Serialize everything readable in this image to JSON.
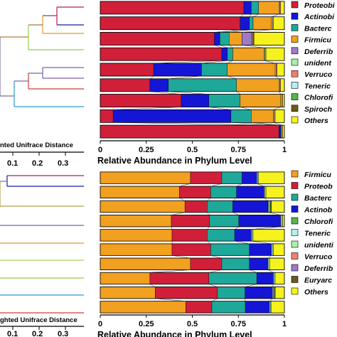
{
  "colors": {
    "Proteobacteria": "#d11f3a",
    "Actinobacteria": "#1515d6",
    "Bacteroidetes": "#1ea89a",
    "Firmicutes": "#f2a01f",
    "Deferribacteres": "#9f7ac9",
    "unidentified": "#a8f0a8",
    "Verrucomicrobia": "#f08070",
    "Tenericutes": "#b5f0f0",
    "Chloroflexi": "#58b24a",
    "Spirochaetes": "#6b5a1a",
    "Euryarchaeota": "#6b5a1a",
    "Others": "#f5f21e"
  },
  "chart_data": [
    {
      "type": "bar",
      "orientation": "horizontal-stacked",
      "xlabel": "Relative Abundance in Phylum Level",
      "xticks": [
        "0",
        "0.25",
        "0.5",
        "0.75",
        "1"
      ],
      "xlim": [
        0,
        1
      ],
      "legend": [
        "Proteobi",
        "Actinobi",
        "Bacterc",
        "Firmicu",
        "Deferrib",
        "unident",
        "Verruco",
        "Teneric",
        "Chlorofi",
        "Spiroch",
        "Others"
      ],
      "phyla": [
        "Proteobacteria",
        "Actinobacteria",
        "Bacteroidetes",
        "Firmicutes",
        "Deferribacteres",
        "unidentified",
        "Verrucomicrobia",
        "Tenericutes",
        "Chloroflexi",
        "Spirochaetes",
        "Others"
      ],
      "rows": [
        [
          0.78,
          0.04,
          0.04,
          0.11,
          0.0,
          0.005,
          0.005,
          0.0,
          0.0,
          0.0,
          0.02
        ],
        [
          0.76,
          0.05,
          0.02,
          0.1,
          0.0,
          0.005,
          0.005,
          0.0,
          0.0,
          0.0,
          0.06
        ],
        [
          0.62,
          0.03,
          0.05,
          0.07,
          0.05,
          0.005,
          0.005,
          0.0,
          0.0,
          0.005,
          0.165
        ],
        [
          0.66,
          0.03,
          0.03,
          0.17,
          0.0,
          0.005,
          0.005,
          0.0,
          0.0,
          0.0,
          0.1
        ],
        [
          0.29,
          0.26,
          0.14,
          0.26,
          0.0,
          0.005,
          0.005,
          0.0,
          0.0,
          0.0,
          0.04
        ],
        [
          0.27,
          0.1,
          0.37,
          0.23,
          0.0,
          0.005,
          0.005,
          0.0,
          0.0,
          0.0,
          0.02
        ],
        [
          0.44,
          0.15,
          0.17,
          0.22,
          0.0,
          0.005,
          0.005,
          0.0,
          0.0,
          0.0,
          0.01
        ],
        [
          0.07,
          0.64,
          0.11,
          0.12,
          0.0,
          0.005,
          0.005,
          0.0,
          0.0,
          0.0,
          0.05
        ],
        [
          0.97,
          0.01,
          0.005,
          0.005,
          0.0,
          0.0,
          0.0,
          0.0,
          0.0,
          0.0,
          0.01
        ]
      ]
    },
    {
      "type": "bar",
      "orientation": "horizontal-stacked",
      "xlabel": "Relative Abundance in Phylum Level",
      "xticks": [
        "0",
        "0.25",
        "0.5",
        "0.75",
        "1"
      ],
      "xlim": [
        0,
        1
      ],
      "legend": [
        "Firmicu",
        "Proteob",
        "Bacterc",
        "Actinob",
        "Chlorofi",
        "Teneric",
        "unidenti",
        "Verruco",
        "Deferrib",
        "Euryarc",
        "Others"
      ],
      "phyla": [
        "Firmicutes",
        "Proteobacteria",
        "Bacteroidetes",
        "Actinobacteria",
        "Chloroflexi",
        "Tenericutes",
        "unidentified",
        "Verrucomicrobia",
        "Deferribacteres",
        "Euryarchaeota",
        "Others"
      ],
      "rows": [
        [
          0.49,
          0.17,
          0.11,
          0.08,
          0.0,
          0.005,
          0.005,
          0.0,
          0.0,
          0.0,
          0.14
        ],
        [
          0.43,
          0.17,
          0.14,
          0.15,
          0.0,
          0.005,
          0.005,
          0.0,
          0.0,
          0.0,
          0.1
        ],
        [
          0.46,
          0.12,
          0.14,
          0.19,
          0.005,
          0.005,
          0.005,
          0.0,
          0.0,
          0.005,
          0.07
        ],
        [
          0.39,
          0.21,
          0.16,
          0.23,
          0.0,
          0.005,
          0.005,
          0.0,
          0.0,
          0.0,
          0.01
        ],
        [
          0.39,
          0.19,
          0.15,
          0.09,
          0.0,
          0.005,
          0.005,
          0.0,
          0.0,
          0.0,
          0.17
        ],
        [
          0.39,
          0.21,
          0.21,
          0.12,
          0.0,
          0.005,
          0.005,
          0.0,
          0.0,
          0.0,
          0.06
        ],
        [
          0.49,
          0.17,
          0.15,
          0.1,
          0.0,
          0.005,
          0.005,
          0.0,
          0.0,
          0.0,
          0.08
        ],
        [
          0.27,
          0.32,
          0.26,
          0.09,
          0.0,
          0.005,
          0.005,
          0.0,
          0.0,
          0.0,
          0.05
        ],
        [
          0.3,
          0.34,
          0.15,
          0.15,
          0.0,
          0.005,
          0.005,
          0.0,
          0.0,
          0.005,
          0.05
        ],
        [
          0.46,
          0.14,
          0.18,
          0.13,
          0.0,
          0.005,
          0.005,
          0.0,
          0.0,
          0.0,
          0.07
        ]
      ]
    }
  ],
  "dendrograms": [
    {
      "label": "nted Unifrace Distance",
      "ticks": [
        "0.1",
        "0.2",
        "0.3"
      ]
    },
    {
      "label": "ghted Unifrace Distance",
      "ticks": [
        "0.1",
        "0.2",
        "0.3"
      ]
    }
  ]
}
